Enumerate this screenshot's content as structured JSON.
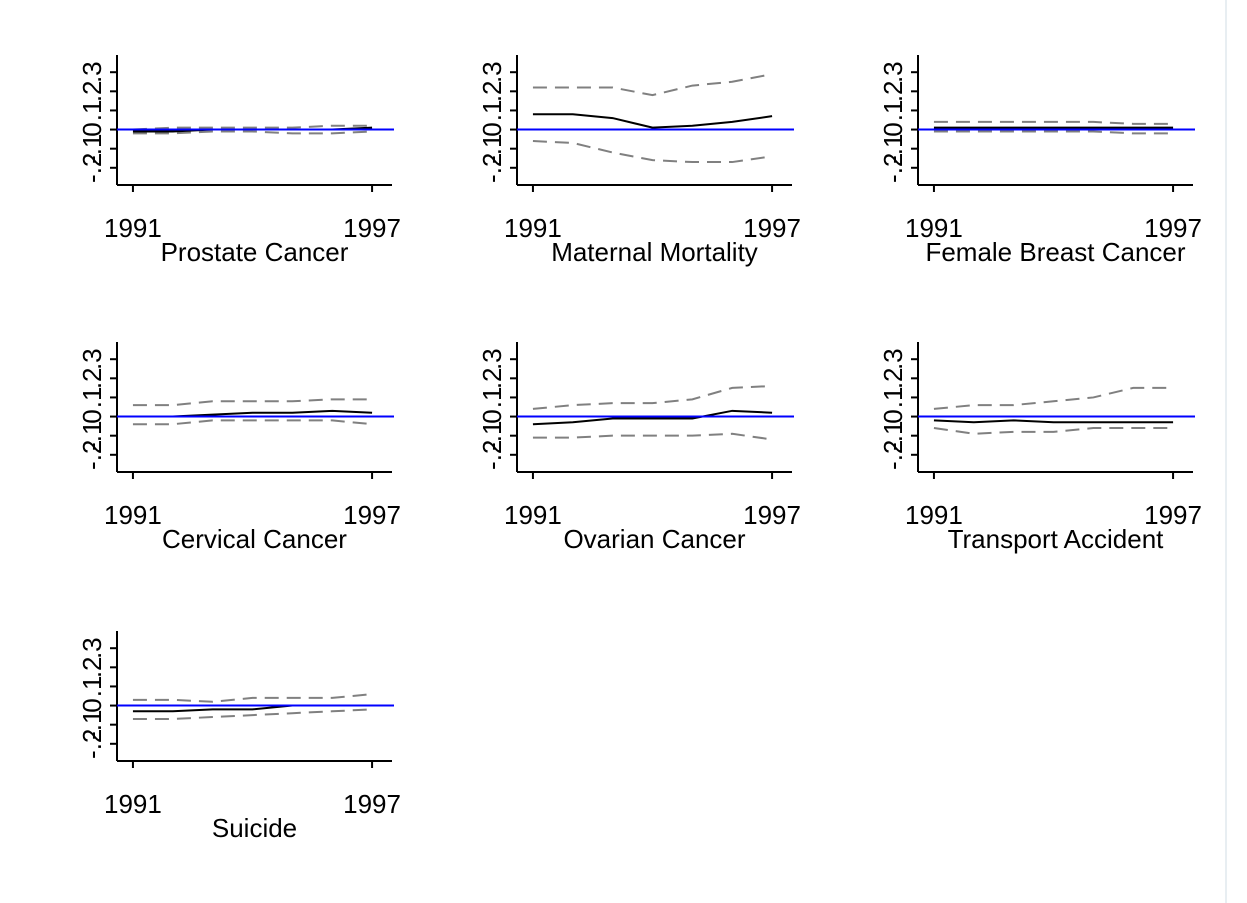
{
  "chart_data": [
    {
      "type": "line",
      "xlabel": "Prostate Cancer",
      "x": [
        1991,
        1992,
        1993,
        1994,
        1995,
        1996,
        1997
      ],
      "series": [
        {
          "color": "#000000",
          "dashed": false,
          "values": [
            -0.01,
            -0.01,
            0.0,
            0.0,
            0.0,
            0.0,
            0.01
          ]
        },
        {
          "color": "#808080",
          "dashed": true,
          "values": [
            0.0,
            0.01,
            0.01,
            0.01,
            0.01,
            0.02,
            0.02
          ]
        },
        {
          "color": "#808080",
          "dashed": true,
          "values": [
            -0.02,
            -0.02,
            -0.01,
            -0.01,
            -0.02,
            -0.02,
            -0.01
          ]
        }
      ],
      "xlim": [
        1990.6,
        1997.5
      ],
      "xticks": [
        1991,
        1997
      ],
      "ylim": [
        -0.29,
        0.39
      ],
      "yticks": [
        {
          "value": -0.2,
          "label": "-.2"
        },
        {
          "value": -0.1,
          "label": "-.1"
        },
        0,
        {
          "value": 0.1,
          "label": ".1"
        },
        {
          "value": 0.2,
          "label": ".2"
        },
        {
          "value": 0.3,
          "label": ".3"
        }
      ],
      "yline": 0,
      "yline_color": "#0000ff"
    },
    {
      "type": "line",
      "xlabel": "Maternal Mortality",
      "x": [
        1991,
        1992,
        1993,
        1994,
        1995,
        1996,
        1997
      ],
      "series": [
        {
          "color": "#000000",
          "dashed": false,
          "values": [
            0.08,
            0.08,
            0.06,
            0.01,
            0.02,
            0.04,
            0.07
          ]
        },
        {
          "color": "#808080",
          "dashed": true,
          "values": [
            0.22,
            0.22,
            0.22,
            0.18,
            0.23,
            0.25,
            0.29
          ]
        },
        {
          "color": "#808080",
          "dashed": true,
          "values": [
            -0.06,
            -0.07,
            -0.12,
            -0.16,
            -0.17,
            -0.17,
            -0.14
          ]
        }
      ],
      "xlim": [
        1990.6,
        1997.5
      ],
      "xticks": [
        1991,
        1997
      ],
      "ylim": [
        -0.29,
        0.39
      ],
      "yticks": [
        {
          "value": -0.2,
          "label": "-.2"
        },
        {
          "value": -0.1,
          "label": "-.1"
        },
        0,
        {
          "value": 0.1,
          "label": ".1"
        },
        {
          "value": 0.2,
          "label": ".2"
        },
        {
          "value": 0.3,
          "label": ".3"
        }
      ],
      "yline": 0,
      "yline_color": "#0000ff"
    },
    {
      "type": "line",
      "xlabel": "Female Breast Cancer",
      "x": [
        1991,
        1992,
        1993,
        1994,
        1995,
        1996,
        1997
      ],
      "series": [
        {
          "color": "#000000",
          "dashed": false,
          "values": [
            0.01,
            0.01,
            0.01,
            0.01,
            0.01,
            0.01,
            0.01
          ]
        },
        {
          "color": "#808080",
          "dashed": true,
          "values": [
            0.04,
            0.04,
            0.04,
            0.04,
            0.04,
            0.03,
            0.03
          ]
        },
        {
          "color": "#808080",
          "dashed": true,
          "values": [
            -0.01,
            -0.01,
            -0.01,
            -0.01,
            -0.01,
            -0.02,
            -0.02
          ]
        }
      ],
      "xlim": [
        1990.6,
        1997.5
      ],
      "xticks": [
        1991,
        1997
      ],
      "ylim": [
        -0.29,
        0.39
      ],
      "yticks": [
        {
          "value": -0.2,
          "label": "-.2"
        },
        {
          "value": -0.1,
          "label": "-.1"
        },
        0,
        {
          "value": 0.1,
          "label": ".1"
        },
        {
          "value": 0.2,
          "label": ".2"
        },
        {
          "value": 0.3,
          "label": ".3"
        }
      ],
      "yline": 0,
      "yline_color": "#0000ff"
    },
    {
      "type": "line",
      "xlabel": "Cervical Cancer",
      "x": [
        1991,
        1992,
        1993,
        1994,
        1995,
        1996,
        1997
      ],
      "series": [
        {
          "color": "#000000",
          "dashed": false,
          "values": [
            0.0,
            0.0,
            0.01,
            0.02,
            0.02,
            0.03,
            0.02
          ]
        },
        {
          "color": "#808080",
          "dashed": true,
          "values": [
            0.06,
            0.06,
            0.08,
            0.08,
            0.08,
            0.09,
            0.09
          ]
        },
        {
          "color": "#808080",
          "dashed": true,
          "values": [
            -0.04,
            -0.04,
            -0.02,
            -0.02,
            -0.02,
            -0.02,
            -0.04
          ]
        }
      ],
      "xlim": [
        1990.6,
        1997.5
      ],
      "xticks": [
        1991,
        1997
      ],
      "ylim": [
        -0.29,
        0.39
      ],
      "yticks": [
        {
          "value": -0.2,
          "label": "-.2"
        },
        {
          "value": -0.1,
          "label": "-.1"
        },
        0,
        {
          "value": 0.1,
          "label": ".1"
        },
        {
          "value": 0.2,
          "label": ".2"
        },
        {
          "value": 0.3,
          "label": ".3"
        }
      ],
      "yline": 0,
      "yline_color": "#0000ff"
    },
    {
      "type": "line",
      "xlabel": "Ovarian Cancer",
      "x": [
        1991,
        1992,
        1993,
        1994,
        1995,
        1996,
        1997
      ],
      "series": [
        {
          "color": "#000000",
          "dashed": false,
          "values": [
            -0.04,
            -0.03,
            -0.01,
            -0.01,
            -0.01,
            0.03,
            0.02
          ]
        },
        {
          "color": "#808080",
          "dashed": true,
          "values": [
            0.04,
            0.06,
            0.07,
            0.07,
            0.09,
            0.15,
            0.16
          ]
        },
        {
          "color": "#808080",
          "dashed": true,
          "values": [
            -0.11,
            -0.11,
            -0.1,
            -0.1,
            -0.1,
            -0.09,
            -0.12
          ]
        }
      ],
      "xlim": [
        1990.6,
        1997.5
      ],
      "xticks": [
        1991,
        1997
      ],
      "ylim": [
        -0.29,
        0.39
      ],
      "yticks": [
        {
          "value": -0.2,
          "label": "-.2"
        },
        {
          "value": -0.1,
          "label": "-.1"
        },
        0,
        {
          "value": 0.1,
          "label": ".1"
        },
        {
          "value": 0.2,
          "label": ".2"
        },
        {
          "value": 0.3,
          "label": ".3"
        }
      ],
      "yline": 0,
      "yline_color": "#0000ff"
    },
    {
      "type": "line",
      "xlabel": "Transport Accident",
      "x": [
        1991,
        1992,
        1993,
        1994,
        1995,
        1996,
        1997
      ],
      "series": [
        {
          "color": "#000000",
          "dashed": false,
          "values": [
            -0.02,
            -0.03,
            -0.02,
            -0.03,
            -0.03,
            -0.03,
            -0.03
          ]
        },
        {
          "color": "#808080",
          "dashed": true,
          "values": [
            0.04,
            0.06,
            0.06,
            0.08,
            0.1,
            0.15,
            0.15
          ]
        },
        {
          "color": "#808080",
          "dashed": true,
          "values": [
            -0.06,
            -0.09,
            -0.08,
            -0.08,
            -0.06,
            -0.06,
            -0.06
          ]
        }
      ],
      "xlim": [
        1990.6,
        1997.5
      ],
      "xticks": [
        1991,
        1997
      ],
      "ylim": [
        -0.29,
        0.39
      ],
      "yticks": [
        {
          "value": -0.2,
          "label": "-.2"
        },
        {
          "value": -0.1,
          "label": "-.1"
        },
        0,
        {
          "value": 0.1,
          "label": ".1"
        },
        {
          "value": 0.2,
          "label": ".2"
        },
        {
          "value": 0.3,
          "label": ".3"
        }
      ],
      "yline": 0,
      "yline_color": "#0000ff"
    },
    {
      "type": "line",
      "xlabel": "Suicide",
      "x": [
        1991,
        1992,
        1993,
        1994,
        1995,
        1996,
        1997
      ],
      "series": [
        {
          "color": "#000000",
          "dashed": false,
          "values": [
            -0.03,
            -0.03,
            -0.02,
            -0.02,
            0.0,
            0.0,
            0.0
          ]
        },
        {
          "color": "#808080",
          "dashed": true,
          "values": [
            0.03,
            0.03,
            0.02,
            0.04,
            0.04,
            0.04,
            0.06
          ]
        },
        {
          "color": "#808080",
          "dashed": true,
          "values": [
            -0.07,
            -0.07,
            -0.06,
            -0.05,
            -0.04,
            -0.03,
            -0.02
          ]
        }
      ],
      "xlim": [
        1990.6,
        1997.5
      ],
      "xticks": [
        1991,
        1997
      ],
      "ylim": [
        -0.29,
        0.39
      ],
      "yticks": [
        {
          "value": -0.2,
          "label": "-.2"
        },
        {
          "value": -0.1,
          "label": "-.1"
        },
        0,
        {
          "value": 0.1,
          "label": ".1"
        },
        {
          "value": 0.2,
          "label": ".2"
        },
        {
          "value": 0.3,
          "label": ".3"
        }
      ],
      "yline": 0,
      "yline_color": "#0000ff"
    }
  ]
}
